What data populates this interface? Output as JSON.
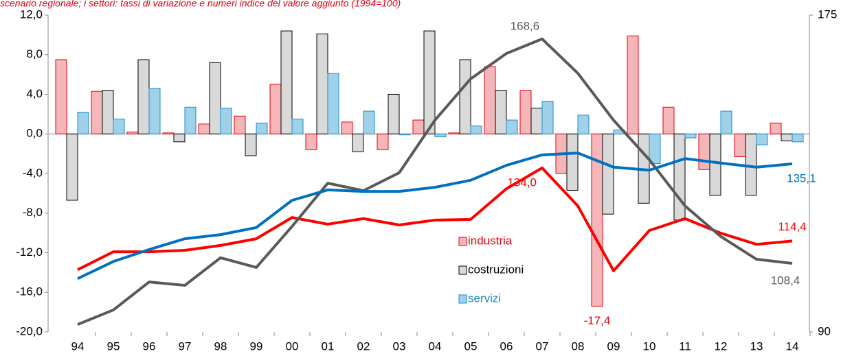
{
  "chart_data": {
    "type": "bar",
    "title": "scenario regionale; i settori: tassi di variazione e numeri indice del valore aggiunto (1994=100)",
    "categories": [
      "94",
      "95",
      "96",
      "97",
      "98",
      "99",
      "00",
      "01",
      "02",
      "03",
      "04",
      "05",
      "06",
      "07",
      "08",
      "09",
      "10",
      "11",
      "12",
      "13",
      "14"
    ],
    "series": [
      {
        "name": "industria",
        "type": "bar",
        "color": "#e8000f",
        "fill": "#f4b6b9",
        "values": [
          7.5,
          4.3,
          0.2,
          0.1,
          1.0,
          1.8,
          5.0,
          -1.6,
          1.2,
          -1.6,
          1.4,
          0.1,
          6.8,
          4.4,
          -4.0,
          -17.4,
          9.9,
          2.7,
          -3.6,
          -2.3,
          1.1
        ],
        "value_labels": [
          null,
          null,
          null,
          null,
          null,
          null,
          null,
          null,
          null,
          null,
          null,
          null,
          null,
          null,
          null,
          "-17,4",
          null,
          null,
          null,
          null,
          null
        ]
      },
      {
        "name": "costruzioni",
        "type": "bar",
        "color": "#000000",
        "fill": "#d9d9d9",
        "values": [
          -6.7,
          4.4,
          7.5,
          -0.8,
          7.2,
          -2.2,
          10.4,
          10.1,
          -1.8,
          4.0,
          10.4,
          7.5,
          4.4,
          2.6,
          -5.7,
          -8.1,
          -7.0,
          -8.7,
          -6.2,
          -6.2,
          -0.7
        ]
      },
      {
        "name": "servizi",
        "type": "bar",
        "color": "#1a8ccc",
        "fill": "#9fd1e8",
        "values": [
          2.2,
          1.5,
          4.6,
          2.7,
          2.6,
          1.1,
          1.5,
          6.1,
          2.3,
          -0.1,
          -0.3,
          0.8,
          1.4,
          3.3,
          1.9,
          0.4,
          -3.0,
          -0.4,
          2.3,
          -1.1,
          -0.8
        ]
      },
      {
        "type": "line",
        "axis": "y2",
        "color": "#ff0000",
        "values": [
          106.7,
          111.5,
          111.5,
          111.9,
          113.2,
          115.0,
          120.7,
          118.9,
          120.4,
          118.7,
          120.0,
          120.2,
          128.4,
          134.0,
          123.8,
          106.4,
          117.2,
          120.4,
          116.5,
          113.5,
          114.4
        ],
        "value_labels": [
          null,
          null,
          null,
          null,
          null,
          null,
          null,
          null,
          null,
          null,
          null,
          null,
          null,
          "134,0",
          null,
          null,
          null,
          null,
          null,
          null,
          "114,4"
        ]
      },
      {
        "type": "line",
        "axis": "y2",
        "color": "#595959",
        "values": [
          92.0,
          95.9,
          103.4,
          102.5,
          109.9,
          107.3,
          118.3,
          129.9,
          127.9,
          132.7,
          146.8,
          157.9,
          164.7,
          168.6,
          159.4,
          146.8,
          136.2,
          123.8,
          115.6,
          109.5,
          108.4
        ],
        "value_labels": [
          null,
          null,
          null,
          null,
          null,
          null,
          null,
          null,
          null,
          null,
          null,
          null,
          null,
          "168,6",
          null,
          null,
          null,
          null,
          null,
          null,
          "108,4"
        ]
      },
      {
        "type": "line",
        "axis": "y2",
        "color": "#0070c0",
        "values": [
          104.3,
          108.9,
          112.1,
          115.0,
          116.1,
          118.0,
          125.3,
          128.1,
          127.7,
          127.7,
          128.8,
          130.7,
          134.7,
          137.5,
          138.0,
          134.2,
          133.4,
          136.5,
          135.3,
          134.2,
          135.1
        ],
        "value_labels": [
          null,
          null,
          null,
          null,
          null,
          null,
          null,
          null,
          null,
          null,
          null,
          null,
          null,
          null,
          null,
          null,
          null,
          null,
          null,
          null,
          "135,1"
        ]
      }
    ],
    "ylim": [
      -20,
      12
    ],
    "yticks": [
      {
        "value": -20,
        "label": "-20,0"
      },
      {
        "value": -16,
        "label": "-16,0"
      },
      {
        "value": -12,
        "label": "-12,0"
      },
      {
        "value": -8,
        "label": "-8,0"
      },
      {
        "value": -4,
        "label": "-4,0"
      },
      {
        "value": 0,
        "label": "0,0"
      },
      {
        "value": 4,
        "label": "4,0"
      },
      {
        "value": 8,
        "label": "8,0"
      },
      {
        "value": 12,
        "label": "12,0"
      }
    ],
    "y2lim": [
      90,
      175
    ],
    "y2ticks": [
      90,
      175
    ],
    "legend": "center",
    "grid": false
  }
}
